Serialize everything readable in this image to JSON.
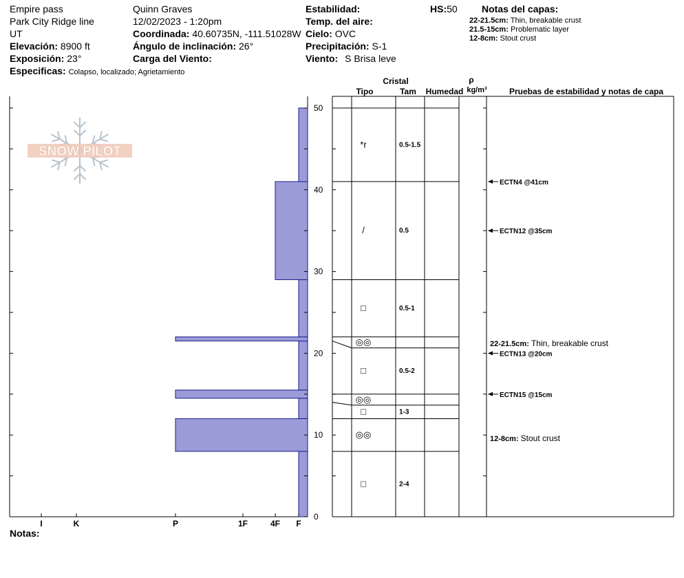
{
  "header": {
    "location": "Empire pass",
    "range": "Park City Ridge line",
    "state": "UT",
    "elevation_label": "Elevación:",
    "elevation_value": "8900 ft",
    "aspect_label": "Exposición:",
    "aspect_value": "23°",
    "specifics_label": "Especificas:",
    "specifics_value": "Colapso, localizado;  Agrietamiento",
    "observer": "Quinn Graves",
    "datetime": "12/02/2023 - 1:20pm",
    "coord_label": "Coordinada:",
    "coord_value": "40.60735N, -111.51028W",
    "slope_label": "Ángulo de inclinación:",
    "slope_value": "26°",
    "windload_label": "Carga del Viento:",
    "windload_value": "",
    "stability_label": "Estabilidad:",
    "stability_value": "",
    "airtemp_label": "Temp. del aire:",
    "airtemp_value": "",
    "sky_label": "Cielo:",
    "sky_value": "OVC",
    "precip_label": "Precipitación:",
    "precip_value": "S-1",
    "wind_label": "Viento:",
    "wind_value": "S Brisa leve",
    "hs_label": "HS:",
    "hs_value": "50",
    "layer_notes_title": "Notas del capas:",
    "layer_notes": [
      {
        "range": "22-21.5cm:",
        "text": "Thin, breakable crust"
      },
      {
        "range": "21.5-15cm:",
        "text": "Problematic layer"
      },
      {
        "range": "12-8cm:",
        "text": "Stout crust"
      }
    ]
  },
  "logo_text": "SNOW PILOT",
  "notes_label": "Notas:",
  "columns": {
    "cristal": "Cristal",
    "tipo": "Tipo",
    "tam": "Tam",
    "humedad": "Humedad",
    "rho": "ρ",
    "density_unit": "kg/m³",
    "tests": "Pruebas de estabilidad y notas de capa"
  },
  "chart_data": {
    "type": "bar",
    "title": "",
    "ylabel": "",
    "ylim": [
      0,
      50
    ],
    "yticks": [
      "0",
      "10",
      "20",
      "30",
      "40",
      "50"
    ],
    "hardness_ticks": [
      "I",
      "K",
      "P",
      "1F",
      "4F",
      "F"
    ],
    "hardness_profile": [
      {
        "bottom": 0,
        "top": 8,
        "hardness": "F"
      },
      {
        "bottom": 8,
        "top": 12,
        "hardness": "P"
      },
      {
        "bottom": 12,
        "top": 14.5,
        "hardness": "F"
      },
      {
        "bottom": 14.5,
        "top": 15.5,
        "hardness": "P"
      },
      {
        "bottom": 15.5,
        "top": 21.5,
        "hardness": "F"
      },
      {
        "bottom": 21.5,
        "top": 22,
        "hardness": "P"
      },
      {
        "bottom": 22,
        "top": 29,
        "hardness": "F"
      },
      {
        "bottom": 29,
        "top": 41,
        "hardness": "4F"
      },
      {
        "bottom": 41,
        "top": 50,
        "hardness": "F"
      }
    ],
    "layers": [
      {
        "bottom": 41,
        "top": 50,
        "grain": "*r",
        "size": "0.5-1.5"
      },
      {
        "bottom": 29,
        "top": 41,
        "grain": "/",
        "size": "0.5"
      },
      {
        "bottom": 22,
        "top": 29,
        "grain": "□",
        "size": "0.5-1"
      },
      {
        "bottom": 21.5,
        "top": 22,
        "grain": "◎◎",
        "size": ""
      },
      {
        "bottom": 15,
        "top": 21.5,
        "grain": "□",
        "size": "0.5-2"
      },
      {
        "bottom": 14,
        "top": 15,
        "grain": "◎◎",
        "size": ""
      },
      {
        "bottom": 12,
        "top": 14,
        "grain": "□",
        "size": "1-3"
      },
      {
        "bottom": 8,
        "top": 12,
        "grain": "◎◎",
        "size": ""
      },
      {
        "bottom": 0,
        "top": 8,
        "grain": "□",
        "size": "2-4"
      }
    ],
    "tests": [
      {
        "height": 41,
        "label": "ECTN4 @41cm"
      },
      {
        "height": 35,
        "label": "ECTN12 @35cm"
      },
      {
        "height": 20,
        "label": "ECTN13 @20cm"
      },
      {
        "height": 15,
        "label": "ECTN15 @15cm"
      }
    ],
    "layer_comments": [
      {
        "height": 21.2,
        "range": "22-21.5cm:",
        "text": "Thin, breakable crust"
      },
      {
        "height": 9.6,
        "range": "12-8cm:",
        "text": "Stout crust"
      }
    ]
  }
}
